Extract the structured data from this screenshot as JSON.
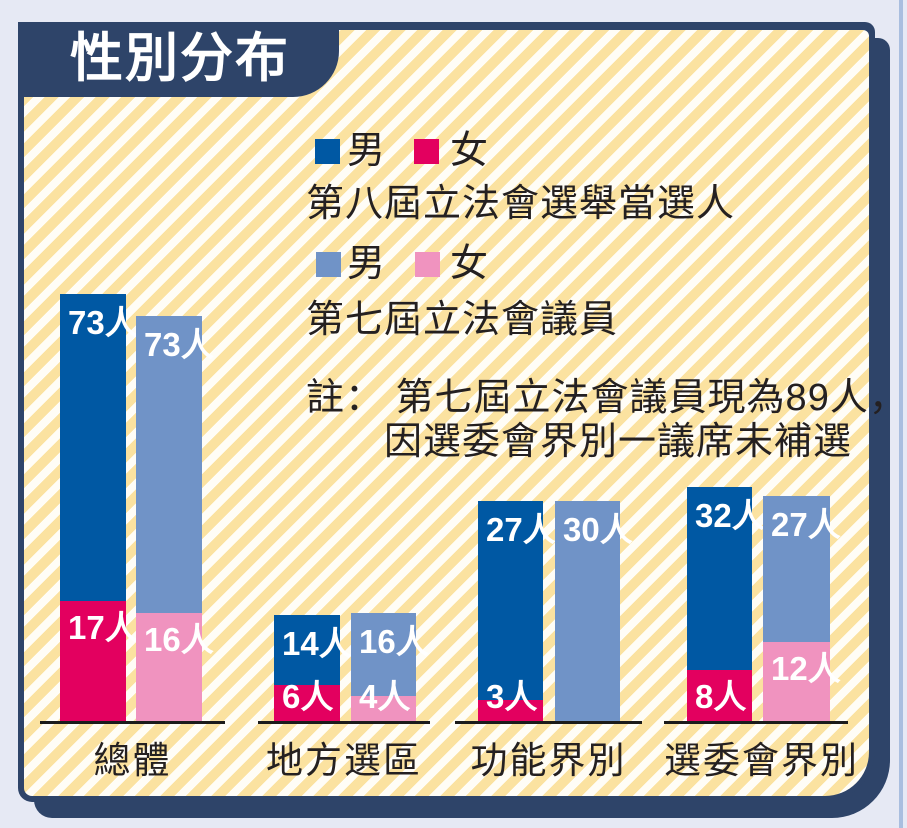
{
  "page": {
    "title": "性別分布"
  },
  "colors": {
    "outer": "#e6e9f4",
    "navy": "#2e4469",
    "edge_line": "#a9bedf",
    "stripe_yellow": "#fbe2a0",
    "stripe_white": "#fffdf6",
    "male8": "#0058a3",
    "female8": "#e3005f",
    "male7": "#7093c7",
    "female7": "#f093bf",
    "axis": "#1b1b1b",
    "text": "#242021"
  },
  "legend": {
    "series8": {
      "male_label": "男",
      "female_label": "女",
      "caption": "第八屆立法會選舉當選人"
    },
    "series7": {
      "male_label": "男",
      "female_label": "女",
      "caption": "第七屆立法會議員"
    }
  },
  "note": {
    "line1": "註： 第七屆立法會議員現為89人，",
    "line2": "因選委會界別一議席未補選"
  },
  "chart_data": {
    "type": "bar",
    "variant": "grouped-stacked",
    "unit_suffix": "人",
    "categories": [
      "總體",
      "地方選區",
      "功能界別",
      "選委會界別"
    ],
    "series": [
      {
        "name": "第八屆立法會選舉當選人 男",
        "color_key": "male8",
        "values": [
          73,
          14,
          27,
          32
        ]
      },
      {
        "name": "第八屆立法會選舉當選人 女",
        "color_key": "female8",
        "values": [
          17,
          6,
          3,
          8
        ]
      },
      {
        "name": "第七屆立法會議員 男",
        "color_key": "male7",
        "values": [
          73,
          16,
          30,
          27
        ]
      },
      {
        "name": "第七屆立法會議員 女",
        "color_key": "female7",
        "values": [
          16,
          4,
          0,
          12
        ]
      }
    ],
    "legend_position": "top-center",
    "grid": false
  }
}
